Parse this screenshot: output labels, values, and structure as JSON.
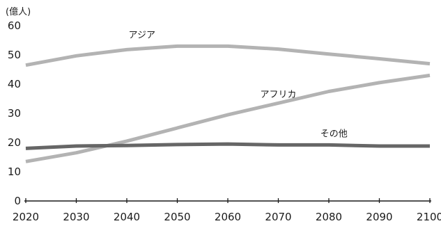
{
  "chart_data": {
    "type": "line",
    "unit": "(億人)",
    "x": [
      2020,
      2030,
      2040,
      2050,
      2060,
      2070,
      2080,
      2090,
      2100
    ],
    "xlim": [
      2020,
      2100
    ],
    "ylim": [
      0,
      60
    ],
    "yticks": [
      0,
      10,
      20,
      30,
      40,
      50,
      60
    ],
    "grid": false,
    "series": [
      {
        "name": "アジア",
        "color": "#b3b3b3",
        "values": [
          46.5,
          49.7,
          51.8,
          53.0,
          53.0,
          52.0,
          50.3,
          48.7,
          47.0
        ]
      },
      {
        "name": "アフリカ",
        "color": "#b3b3b3",
        "values": [
          13.5,
          16.5,
          20.5,
          25.0,
          29.5,
          33.5,
          37.5,
          40.5,
          43.0
        ]
      },
      {
        "name": "その他",
        "color": "#666666",
        "values": [
          18.0,
          18.8,
          19.0,
          19.3,
          19.5,
          19.2,
          19.2,
          18.8,
          18.8
        ]
      }
    ]
  }
}
